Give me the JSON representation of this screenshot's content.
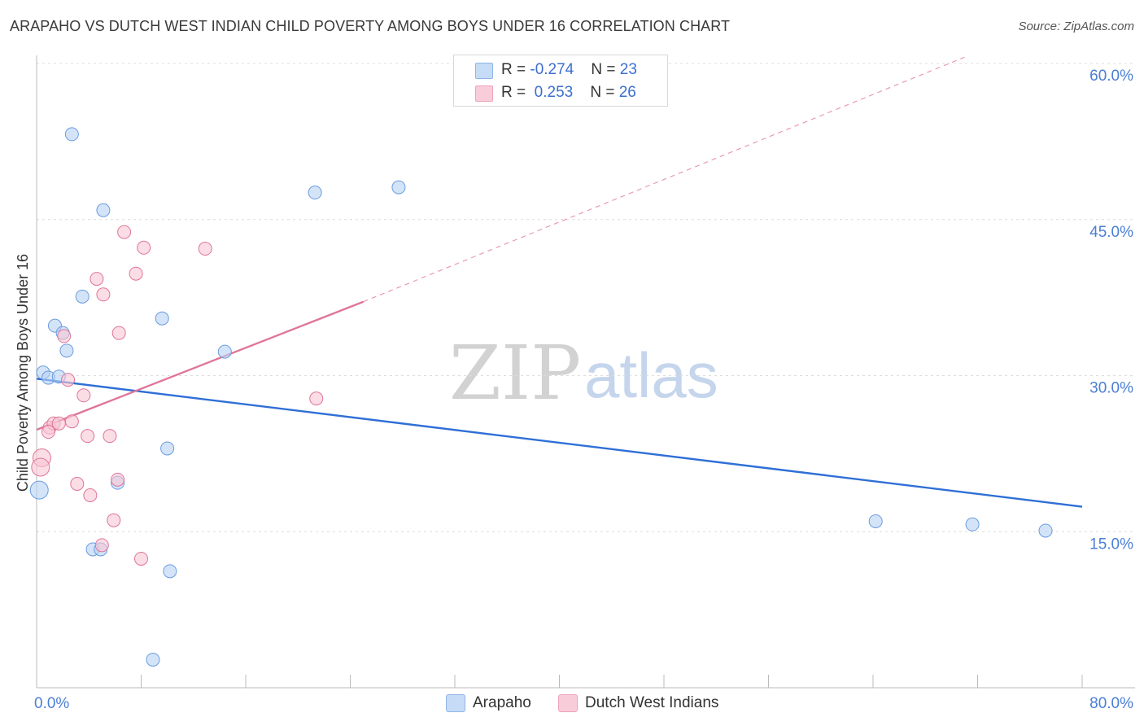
{
  "title": "ARAPAHO VS DUTCH WEST INDIAN CHILD POVERTY AMONG BOYS UNDER 16 CORRELATION CHART",
  "source": "Source: ZipAtlas.com",
  "watermark": {
    "zip": "ZIP",
    "atlas": "atlas"
  },
  "legend": {
    "rows": [
      {
        "r_label": "R = ",
        "r_value": "-0.274",
        "n_label": "N = ",
        "n_value": "23",
        "color": "#a8c8f0"
      },
      {
        "r_label": "R = ",
        "r_value": " 0.253",
        "n_label": "N = ",
        "n_value": "26",
        "color": "#f5b6c8"
      }
    ]
  },
  "bottom_legend": [
    {
      "label": "Arapaho",
      "color": "#b7d2f3"
    },
    {
      "label": "Dutch West Indians",
      "color": "#f8c6d3"
    }
  ],
  "chart_data": {
    "type": "scatter",
    "title": "ARAPAHO VS DUTCH WEST INDIAN CHILD POVERTY AMONG BOYS UNDER 16 CORRELATION CHART",
    "xlabel": "",
    "ylabel": "Child Poverty Among Boys Under 16",
    "xlim": [
      0,
      80
    ],
    "ylim": [
      0,
      60
    ],
    "x_tick_labels": [
      "0.0%",
      "80.0%"
    ],
    "y_ticks": [
      15,
      30,
      45,
      60
    ],
    "y_tick_labels": [
      "15.0%",
      "30.0%",
      "45.0%",
      "60.0%"
    ],
    "series": [
      {
        "name": "Arapaho",
        "color": "#6a9be0",
        "fill": "#b7d2f3",
        "points": [
          [
            2.7,
            53.2
          ],
          [
            5.1,
            45.9
          ],
          [
            21.3,
            47.6
          ],
          [
            27.7,
            48.1
          ],
          [
            3.5,
            37.6
          ],
          [
            9.6,
            35.5
          ],
          [
            1.4,
            34.8
          ],
          [
            2.0,
            34.1
          ],
          [
            2.3,
            32.4
          ],
          [
            14.4,
            32.3
          ],
          [
            0.5,
            30.3
          ],
          [
            0.9,
            29.8
          ],
          [
            1.7,
            29.9
          ],
          [
            10.0,
            23.0
          ],
          [
            6.2,
            19.7
          ],
          [
            0.2,
            19.0
          ],
          [
            64.2,
            16.0
          ],
          [
            71.6,
            15.7
          ],
          [
            77.2,
            15.1
          ],
          [
            4.3,
            13.3
          ],
          [
            4.9,
            13.3
          ],
          [
            10.2,
            11.2
          ],
          [
            8.9,
            2.7
          ]
        ],
        "trend": {
          "x": [
            0,
            80
          ],
          "y": [
            29.7,
            17.4
          ],
          "style": "solid"
        }
      },
      {
        "name": "Dutch West Indians",
        "color": "#e0759a",
        "fill": "#f8c6d3",
        "points": [
          [
            6.7,
            43.8
          ],
          [
            8.2,
            42.3
          ],
          [
            12.9,
            42.2
          ],
          [
            7.6,
            39.8
          ],
          [
            4.6,
            39.3
          ],
          [
            5.1,
            37.8
          ],
          [
            6.3,
            34.1
          ],
          [
            2.1,
            33.8
          ],
          [
            2.4,
            29.6
          ],
          [
            3.6,
            28.1
          ],
          [
            21.4,
            27.8
          ],
          [
            1.0,
            25.0
          ],
          [
            1.3,
            25.4
          ],
          [
            1.7,
            25.4
          ],
          [
            2.7,
            25.6
          ],
          [
            0.9,
            24.6
          ],
          [
            3.9,
            24.2
          ],
          [
            5.6,
            24.2
          ],
          [
            0.4,
            22.1
          ],
          [
            0.3,
            21.2
          ],
          [
            6.2,
            20.0
          ],
          [
            3.1,
            19.6
          ],
          [
            4.1,
            18.5
          ],
          [
            5.9,
            16.1
          ],
          [
            5.0,
            13.7
          ],
          [
            8.0,
            12.4
          ]
        ],
        "trend_solid": {
          "x": [
            0,
            25
          ],
          "y": [
            24.8,
            37.1
          ]
        },
        "trend_dashed": {
          "x": [
            25,
            71
          ],
          "y": [
            37.1,
            60.6
          ]
        }
      }
    ]
  }
}
